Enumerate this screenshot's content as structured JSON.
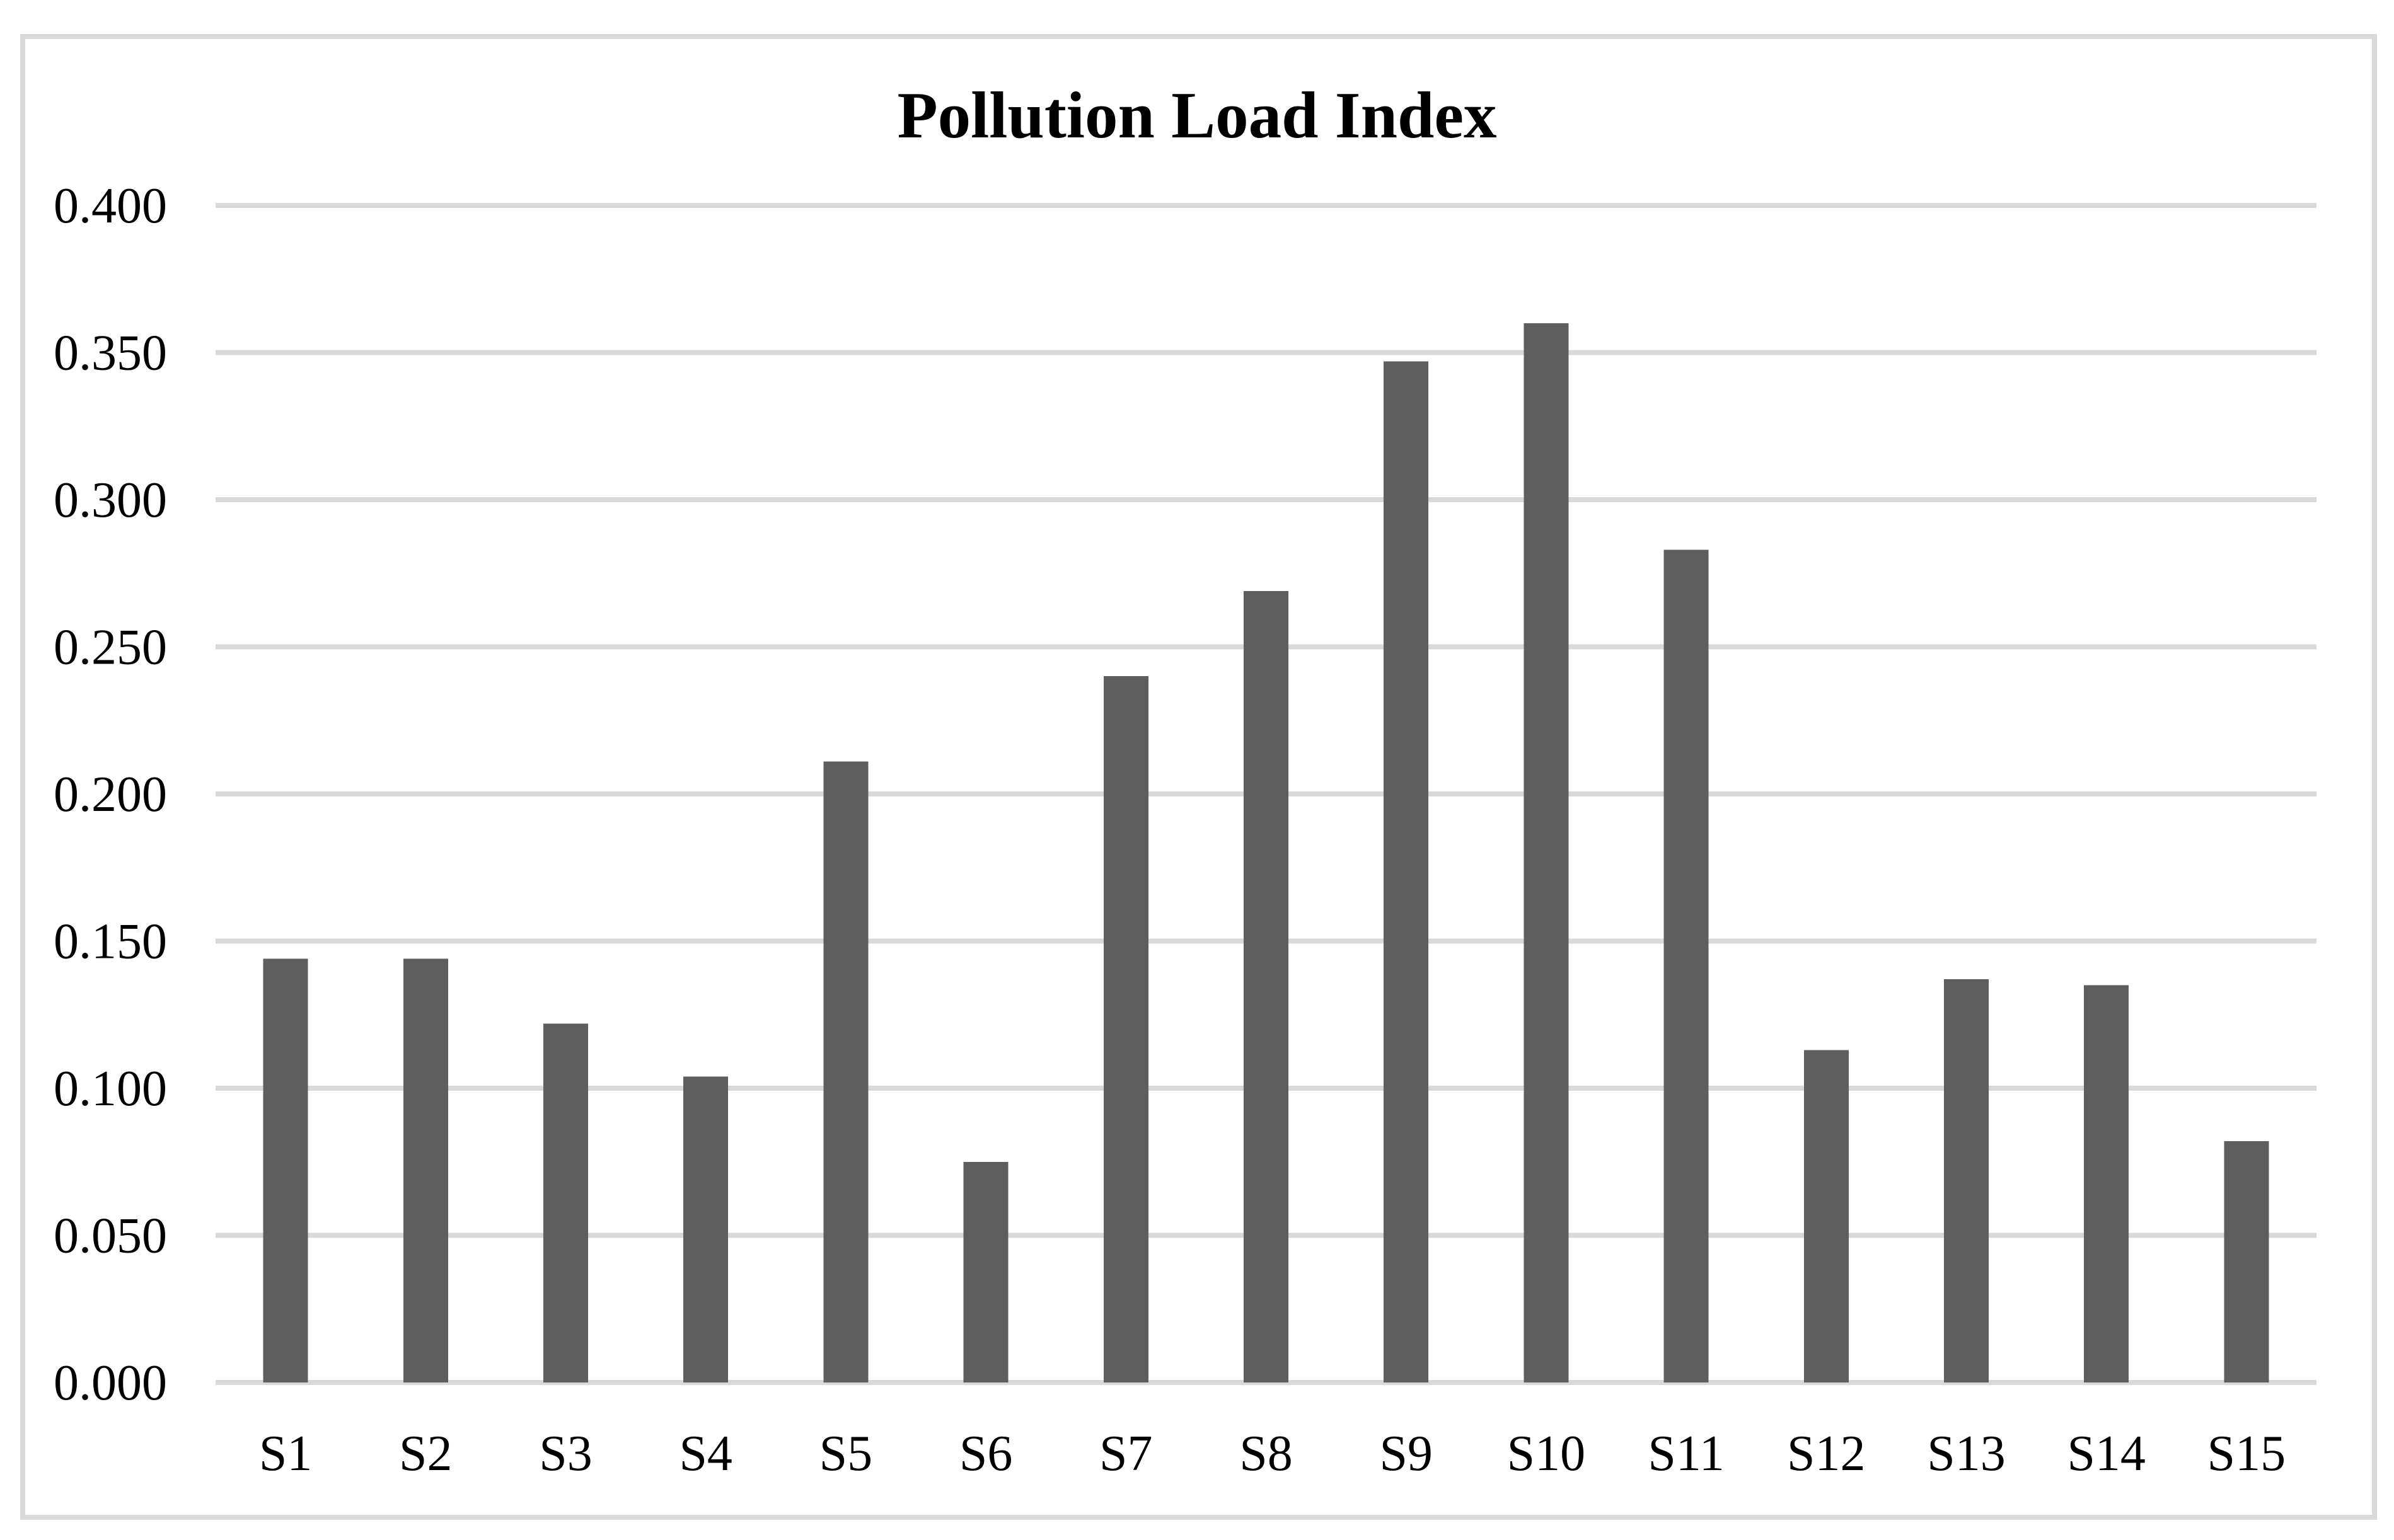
{
  "chart_data": {
    "type": "bar",
    "title": "Pollution Load Index",
    "categories": [
      "S1",
      "S2",
      "S3",
      "S4",
      "S5",
      "S6",
      "S7",
      "S8",
      "S9",
      "S10",
      "S11",
      "S12",
      "S13",
      "S14",
      "S15"
    ],
    "values": [
      0.144,
      0.144,
      0.122,
      0.104,
      0.211,
      0.075,
      0.24,
      0.269,
      0.347,
      0.36,
      0.283,
      0.113,
      0.137,
      0.135,
      0.082
    ],
    "xlabel": "",
    "ylabel": "",
    "ylim": [
      0.0,
      0.4
    ],
    "ytick_step": 0.05,
    "ytick_labels": [
      "0.000",
      "0.050",
      "0.100",
      "0.150",
      "0.200",
      "0.250",
      "0.300",
      "0.350",
      "0.400"
    ],
    "grid": true,
    "legend": false,
    "single_series": true,
    "colors": {
      "bar": "#5e5e5e",
      "gridline": "#d9d9d9",
      "frame_border": "#d9d9d9",
      "text": "#000000",
      "background": "#ffffff"
    }
  }
}
